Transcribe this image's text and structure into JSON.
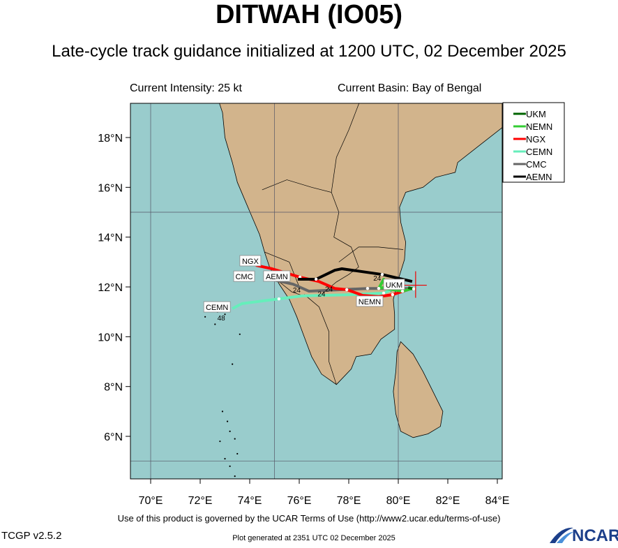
{
  "title": "DITWAH (IO05)",
  "subtitle": "Late-cycle track guidance initialized at 1200 UTC, 02 December 2025",
  "current_intensity": "Current Intensity: 25 kt",
  "current_basin": "Current Basin: Bay of Bengal",
  "lon_labels": [
    "70°E",
    "72°E",
    "74°E",
    "76°E",
    "78°E",
    "80°E",
    "82°E",
    "84°E"
  ],
  "lat_labels": [
    "6°N",
    "8°N",
    "10°N",
    "12°N",
    "14°N",
    "16°N",
    "18°N"
  ],
  "storm_position": {
    "lon": 80.7,
    "lat": 11.9
  },
  "colors": {
    "ocean": "#99cccc",
    "land": "#d2b48c"
  },
  "legend": [
    {
      "name": "UKM",
      "color": "#006400"
    },
    {
      "name": "NEMN",
      "color": "#33cc33"
    },
    {
      "name": "NGX",
      "color": "#ff0000"
    },
    {
      "name": "CEMN",
      "color": "#66eebb"
    },
    {
      "name": "CMC",
      "color": "#666666"
    },
    {
      "name": "AEMN",
      "color": "#000000"
    }
  ],
  "tracks": [
    {
      "name": "CEMN",
      "color": "#66eebb",
      "label": "CEMN",
      "points": [
        [
          80.06,
          12.03
        ],
        [
          79.41,
          11.75
        ],
        [
          78.08,
          11.69
        ],
        [
          76.11,
          11.64
        ],
        [
          75.18,
          11.52
        ],
        [
          73.69,
          11.33
        ],
        [
          73.3,
          11.13
        ]
      ]
    },
    {
      "name": "CMC",
      "color": "#666666",
      "label": "CMC",
      "points": [
        [
          80.45,
          11.94
        ],
        [
          78.76,
          11.94
        ],
        [
          76.39,
          11.83
        ],
        [
          75.75,
          12.11
        ],
        [
          74.62,
          12.36
        ]
      ]
    },
    {
      "name": "NGX",
      "color": "#ff0000",
      "label": "NGX",
      "points": [
        [
          80.54,
          11.94
        ],
        [
          79.77,
          11.69
        ],
        [
          79.21,
          11.61
        ],
        [
          78.56,
          11.66
        ],
        [
          77.92,
          11.89
        ],
        [
          77.44,
          11.94
        ],
        [
          76.79,
          12.22
        ],
        [
          76.03,
          12.39
        ],
        [
          74.9,
          12.73
        ],
        [
          74.25,
          12.87
        ]
      ]
    },
    {
      "name": "AEMN",
      "color": "#000000",
      "label": "AEMN",
      "points": [
        [
          80.56,
          12.22
        ],
        [
          79.35,
          12.5
        ],
        [
          77.72,
          12.73
        ],
        [
          77.44,
          12.67
        ],
        [
          76.68,
          12.31
        ],
        [
          75.94,
          12.31
        ]
      ]
    },
    {
      "name": "NEMN",
      "color": "#33cc33",
      "label": "NEMN",
      "points": [
        [
          80.59,
          11.94
        ],
        [
          80.17,
          11.83
        ],
        [
          79.49,
          11.94
        ],
        [
          79.41,
          12.31
        ],
        [
          79.21,
          11.94
        ],
        [
          79.69,
          12.03
        ]
      ]
    },
    {
      "name": "UKM",
      "color": "#006400",
      "label": "UKM",
      "points": [
        [
          80.4,
          11.97
        ],
        [
          80.62,
          11.92
        ]
      ]
    }
  ],
  "hour_labels": [
    {
      "text": "24",
      "lon": 79.15,
      "lat": 12.25
    },
    {
      "text": "24",
      "lon": 75.9,
      "lat": 11.78
    },
    {
      "text": "24",
      "lon": 76.9,
      "lat": 11.62
    },
    {
      "text": "24",
      "lon": 77.2,
      "lat": 11.82
    },
    {
      "text": "48",
      "lon": 72.85,
      "lat": 10.65
    }
  ],
  "footer": {
    "terms": "Use of this product is governed by the UCAR Terms of Use (http://www2.ucar.edu/terms-of-use)",
    "version": "TCGP v2.5.2",
    "generated": "Plot generated at 2351 UTC   02 December 2025",
    "logo": "NCAR"
  }
}
